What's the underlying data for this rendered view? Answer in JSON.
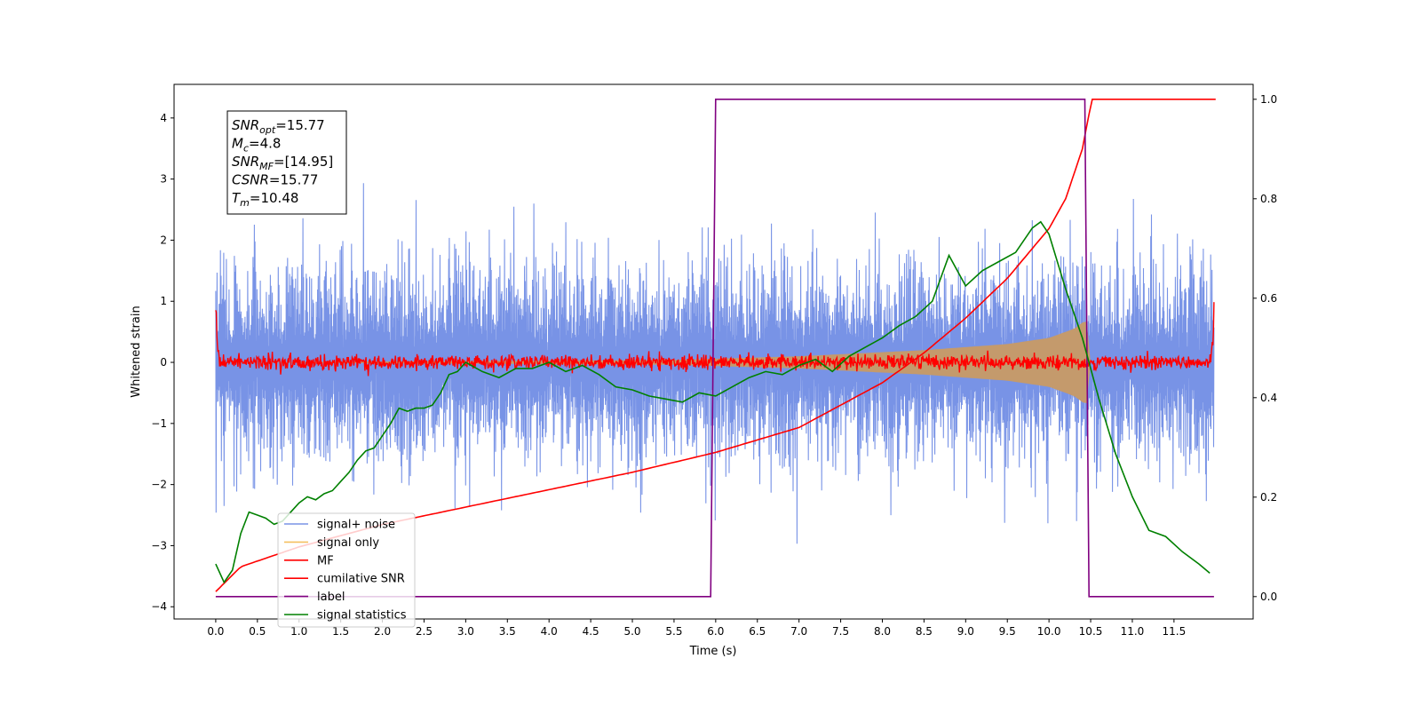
{
  "chart_data": {
    "type": "line",
    "xlabel": "Time (s)",
    "ylabel": "Whitened strain",
    "xlim": [
      -0.5,
      12.45
    ],
    "ylim": [
      -4.2,
      4.55
    ],
    "y2lim": [
      -0.045,
      1.03
    ],
    "x_ticks": [
      "0.0",
      "0.5",
      "1.0",
      "1.5",
      "2.0",
      "2.5",
      "3.0",
      "3.5",
      "4.0",
      "4.5",
      "5.0",
      "5.5",
      "6.0",
      "6.5",
      "7.0",
      "7.5",
      "8.0",
      "8.5",
      "9.0",
      "9.5",
      "10.0",
      "10.5",
      "11.0",
      "11.5"
    ],
    "y_ticks": [
      "4",
      "3",
      "2",
      "1",
      "0",
      "−1",
      "−2",
      "−3",
      "−4"
    ],
    "y2_ticks": [
      "1.0",
      "0.8",
      "0.6",
      "0.4",
      "0.2",
      "0.0"
    ],
    "annotation": {
      "lines": [
        {
          "sym": "SNR",
          "sub": "opt",
          "value": "=15.77"
        },
        {
          "sym": "M",
          "sub": "c",
          "value": "=4.8"
        },
        {
          "sym": "SNR",
          "sub": "MF",
          "value": "=[14.95]"
        },
        {
          "sym": "CSNR",
          "sub": "",
          "value": "=15.77"
        },
        {
          "sym": "T",
          "sub": "m",
          "value": "=10.48"
        }
      ]
    },
    "legend": {
      "placement": "lower-left",
      "entries": [
        {
          "label": "signal+ noise",
          "color": "#7893e6"
        },
        {
          "label": "signal only",
          "color": "#f5c060"
        },
        {
          "label": "MF",
          "color": "#ff0000"
        },
        {
          "label": "cumilative SNR",
          "color": "#ff0000"
        },
        {
          "label": "label",
          "color": "#800080"
        },
        {
          "label": "signal statistics",
          "color": "#008000"
        }
      ]
    },
    "series": [
      {
        "name": "signal+ noise",
        "axis": "left",
        "color": "#7893e6",
        "kind": "noise",
        "x_range": [
          0,
          11.98
        ],
        "envelope_amplitude": 0.85
      },
      {
        "name": "signal only",
        "axis": "left",
        "color": "#c49a6c",
        "kind": "chirp_envelope",
        "x": [
          0,
          5.5,
          7.0,
          8.5,
          9.5,
          10.0,
          10.3,
          10.45,
          10.5
        ],
        "amplitude": [
          0.0,
          0.04,
          0.1,
          0.2,
          0.3,
          0.4,
          0.55,
          0.7,
          0.0
        ]
      },
      {
        "name": "MF",
        "axis": "left",
        "color": "#ff0000",
        "kind": "noise_around_zero",
        "x_range": [
          0,
          11.98
        ],
        "amplitude": 0.06,
        "x": [
          0,
          0.02,
          0.05,
          11.93,
          11.97,
          11.98
        ],
        "y": [
          1.0,
          0.3,
          0.05,
          0.05,
          0.4,
          0.95
        ]
      },
      {
        "name": "cumilative SNR",
        "axis": "right",
        "color": "#ff0000",
        "x": [
          0,
          0.3,
          1,
          2,
          3,
          4,
          5,
          6,
          7,
          8,
          8.5,
          9,
          9.5,
          10,
          10.2,
          10.4,
          10.48,
          10.5,
          12.0
        ],
        "y": [
          0.01,
          0.06,
          0.1,
          0.145,
          0.18,
          0.215,
          0.25,
          0.29,
          0.34,
          0.43,
          0.49,
          0.56,
          0.64,
          0.74,
          0.8,
          0.9,
          0.97,
          1.0,
          1.0
        ]
      },
      {
        "name": "label",
        "axis": "right",
        "color": "#800080",
        "x": [
          0,
          5.94,
          6.0,
          10.43,
          10.48,
          11.98
        ],
        "y": [
          0,
          0,
          1,
          1,
          0,
          0
        ]
      },
      {
        "name": "signal statistics",
        "axis": "left",
        "color": "#008000",
        "x": [
          0,
          0.1,
          0.2,
          0.3,
          0.4,
          0.5,
          0.6,
          0.7,
          0.8,
          0.9,
          1.0,
          1.1,
          1.2,
          1.3,
          1.4,
          1.5,
          1.6,
          1.7,
          1.8,
          1.9,
          2.0,
          2.1,
          2.2,
          2.3,
          2.4,
          2.5,
          2.6,
          2.7,
          2.8,
          2.9,
          3.0,
          3.2,
          3.4,
          3.6,
          3.8,
          4.0,
          4.2,
          4.4,
          4.6,
          4.8,
          5.0,
          5.2,
          5.4,
          5.6,
          5.8,
          6.0,
          6.2,
          6.4,
          6.6,
          6.8,
          7.0,
          7.2,
          7.4,
          7.6,
          7.8,
          8.0,
          8.2,
          8.4,
          8.6,
          8.8,
          9.0,
          9.2,
          9.4,
          9.6,
          9.8,
          9.9,
          10.0,
          10.2,
          10.4,
          10.6,
          10.8,
          11.0,
          11.2,
          11.4,
          11.6,
          11.8,
          11.93
        ],
        "y": [
          -3.3,
          -3.6,
          -3.4,
          -2.8,
          -2.45,
          -2.5,
          -2.55,
          -2.65,
          -2.6,
          -2.45,
          -2.3,
          -2.2,
          -2.25,
          -2.15,
          -2.1,
          -1.95,
          -1.8,
          -1.6,
          -1.45,
          -1.4,
          -1.2,
          -1.0,
          -0.75,
          -0.8,
          -0.75,
          -0.75,
          -0.7,
          -0.5,
          -0.2,
          -0.15,
          0.0,
          -0.15,
          -0.25,
          -0.1,
          -0.1,
          0.0,
          -0.15,
          -0.05,
          -0.2,
          -0.4,
          -0.45,
          -0.55,
          -0.6,
          -0.65,
          -0.5,
          -0.55,
          -0.4,
          -0.25,
          -0.15,
          -0.2,
          -0.05,
          0.05,
          -0.15,
          0.1,
          0.25,
          0.4,
          0.6,
          0.75,
          1.0,
          1.75,
          1.25,
          1.5,
          1.65,
          1.8,
          2.2,
          2.3,
          2.1,
          1.2,
          0.4,
          -0.6,
          -1.5,
          -2.2,
          -2.75,
          -2.85,
          -3.1,
          -3.3,
          -3.45
        ]
      }
    ]
  }
}
